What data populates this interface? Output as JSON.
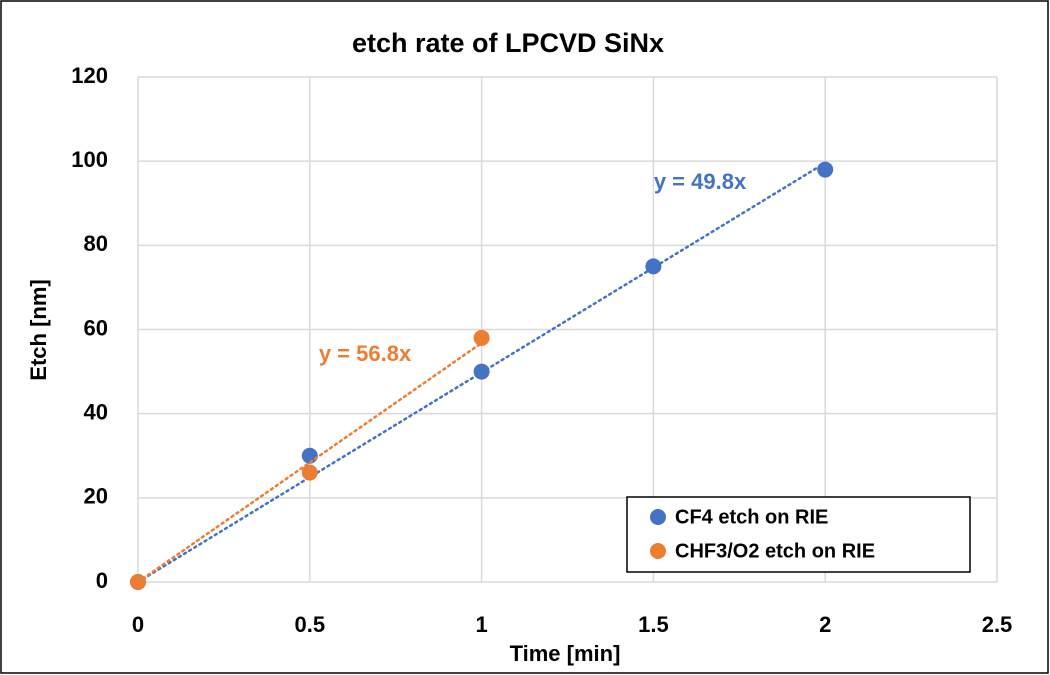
{
  "chart_data": {
    "type": "scatter",
    "title": "etch rate of LPCVD SiNx",
    "xlabel": "Time [min]",
    "ylabel": "Etch [nm]",
    "xlim": [
      0,
      2.5
    ],
    "xticks": [
      0,
      0.5,
      1,
      1.5,
      2,
      2.5
    ],
    "ylim": [
      0,
      120
    ],
    "yticks": [
      0,
      20,
      40,
      60,
      80,
      100,
      120
    ],
    "grid": true,
    "legend": "lower right",
    "series": [
      {
        "name": "CF4 etch on RIE",
        "color": "#4472c4",
        "x": [
          0,
          0.5,
          1,
          1.5,
          2
        ],
        "values": [
          0,
          30,
          50,
          75,
          98
        ],
        "trendline": {
          "slope": 49.8,
          "label": "y = 49.8x"
        }
      },
      {
        "name": "CHF3/O2 etch on RIE",
        "color": "#ed7d31",
        "x": [
          0,
          0.5,
          1
        ],
        "values": [
          0,
          26,
          58
        ],
        "trendline": {
          "slope": 56.8,
          "label": "y = 56.8x"
        }
      }
    ]
  }
}
